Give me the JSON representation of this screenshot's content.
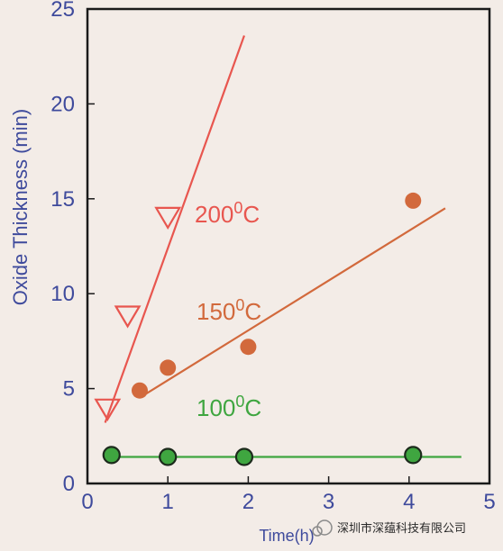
{
  "chart_data": {
    "type": "scatter",
    "title": "",
    "xlabel": "Time(h)",
    "ylabel": "Oxide Thickness (min)",
    "xlim": [
      0,
      5
    ],
    "ylim": [
      0,
      25
    ],
    "xticks": [
      "0",
      "1",
      "2",
      "3",
      "4",
      "5"
    ],
    "yticks": [
      "0",
      "5",
      "10",
      "15",
      "20",
      "25"
    ],
    "grid": false,
    "series": [
      {
        "label_base": "200",
        "label_sup": "0",
        "label_unit": "C",
        "color": "#e8564f",
        "marker": "triangle-down-open",
        "points": [
          [
            0.25,
            3.9
          ],
          [
            0.5,
            8.8
          ],
          [
            1.0,
            14.0
          ]
        ],
        "fit": [
          [
            0.22,
            3.2
          ],
          [
            1.95,
            23.6
          ]
        ]
      },
      {
        "label_base": "150",
        "label_sup": "0",
        "label_unit": "C",
        "color": "#d2693c",
        "marker": "circle",
        "points": [
          [
            0.65,
            4.9
          ],
          [
            1.0,
            6.1
          ],
          [
            2.0,
            7.2
          ],
          [
            4.05,
            14.9
          ]
        ],
        "fit": [
          [
            0.68,
            4.6
          ],
          [
            4.45,
            14.5
          ]
        ]
      },
      {
        "label_base": "100",
        "label_sup": "0",
        "label_unit": "C",
        "color": "#3fa640",
        "marker": "circle-outlined",
        "points": [
          [
            0.3,
            1.5
          ],
          [
            1.0,
            1.4
          ],
          [
            1.95,
            1.4
          ],
          [
            4.05,
            1.5
          ]
        ],
        "fit": [
          [
            0.3,
            1.4
          ],
          [
            4.65,
            1.4
          ]
        ]
      }
    ]
  },
  "watermark": "深圳市深蕴科技有限公司"
}
